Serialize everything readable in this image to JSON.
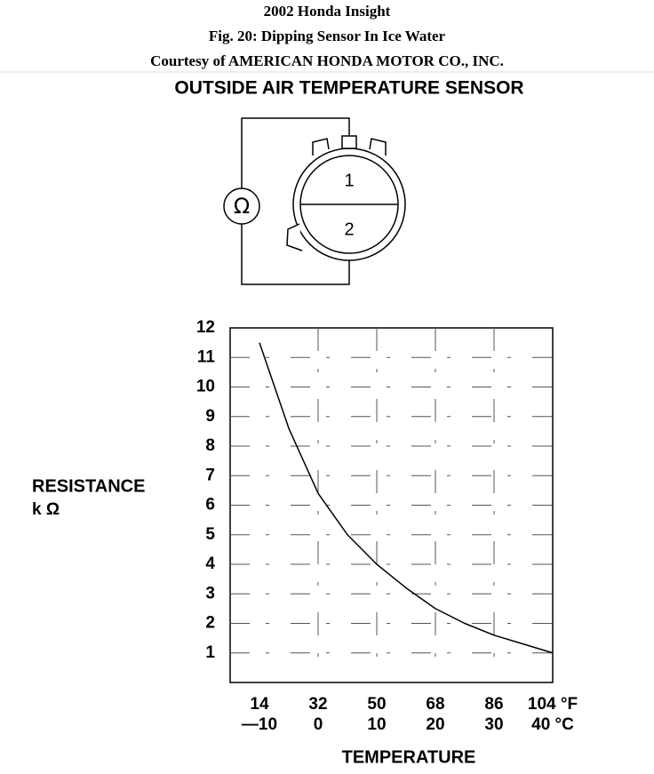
{
  "header": {
    "title": "2002 Honda Insight",
    "caption": "Fig. 20: Dipping Sensor In Ice Water",
    "credit": "Courtesy of AMERICAN HONDA MOTOR CO., INC."
  },
  "diagram": {
    "title": "OUTSIDE AIR TEMPERATURE SENSOR",
    "meter_symbol": "Ω",
    "pin_labels": [
      "1",
      "2"
    ]
  },
  "chart_data": {
    "type": "line",
    "xlabel": "TEMPERATURE",
    "ylabel": "RESISTANCE",
    "yunit": "k Ω",
    "x": [
      14,
      23,
      32,
      41,
      50,
      59,
      68,
      77,
      86,
      95,
      104
    ],
    "values": [
      11.5,
      8.6,
      6.4,
      5.0,
      4.0,
      3.2,
      2.5,
      2.0,
      1.6,
      1.3,
      1.0
    ],
    "color": "#000000",
    "xlim": [
      5,
      104
    ],
    "ylim": [
      0,
      12
    ],
    "xticks": [
      14,
      32,
      50,
      68,
      86,
      {
        "value": 104,
        "label": "104 °F"
      }
    ],
    "x2ticks": [
      {
        "value": 14,
        "label": "—10"
      },
      {
        "value": 32,
        "label": "0"
      },
      {
        "value": 50,
        "label": "10"
      },
      {
        "value": 68,
        "label": "20"
      },
      {
        "value": 86,
        "label": "30"
      },
      {
        "value": 104,
        "label": "40 °C"
      }
    ],
    "yticks": [
      1,
      2,
      3,
      4,
      5,
      6,
      7,
      8,
      9,
      10,
      11,
      12
    ],
    "grid": true
  }
}
